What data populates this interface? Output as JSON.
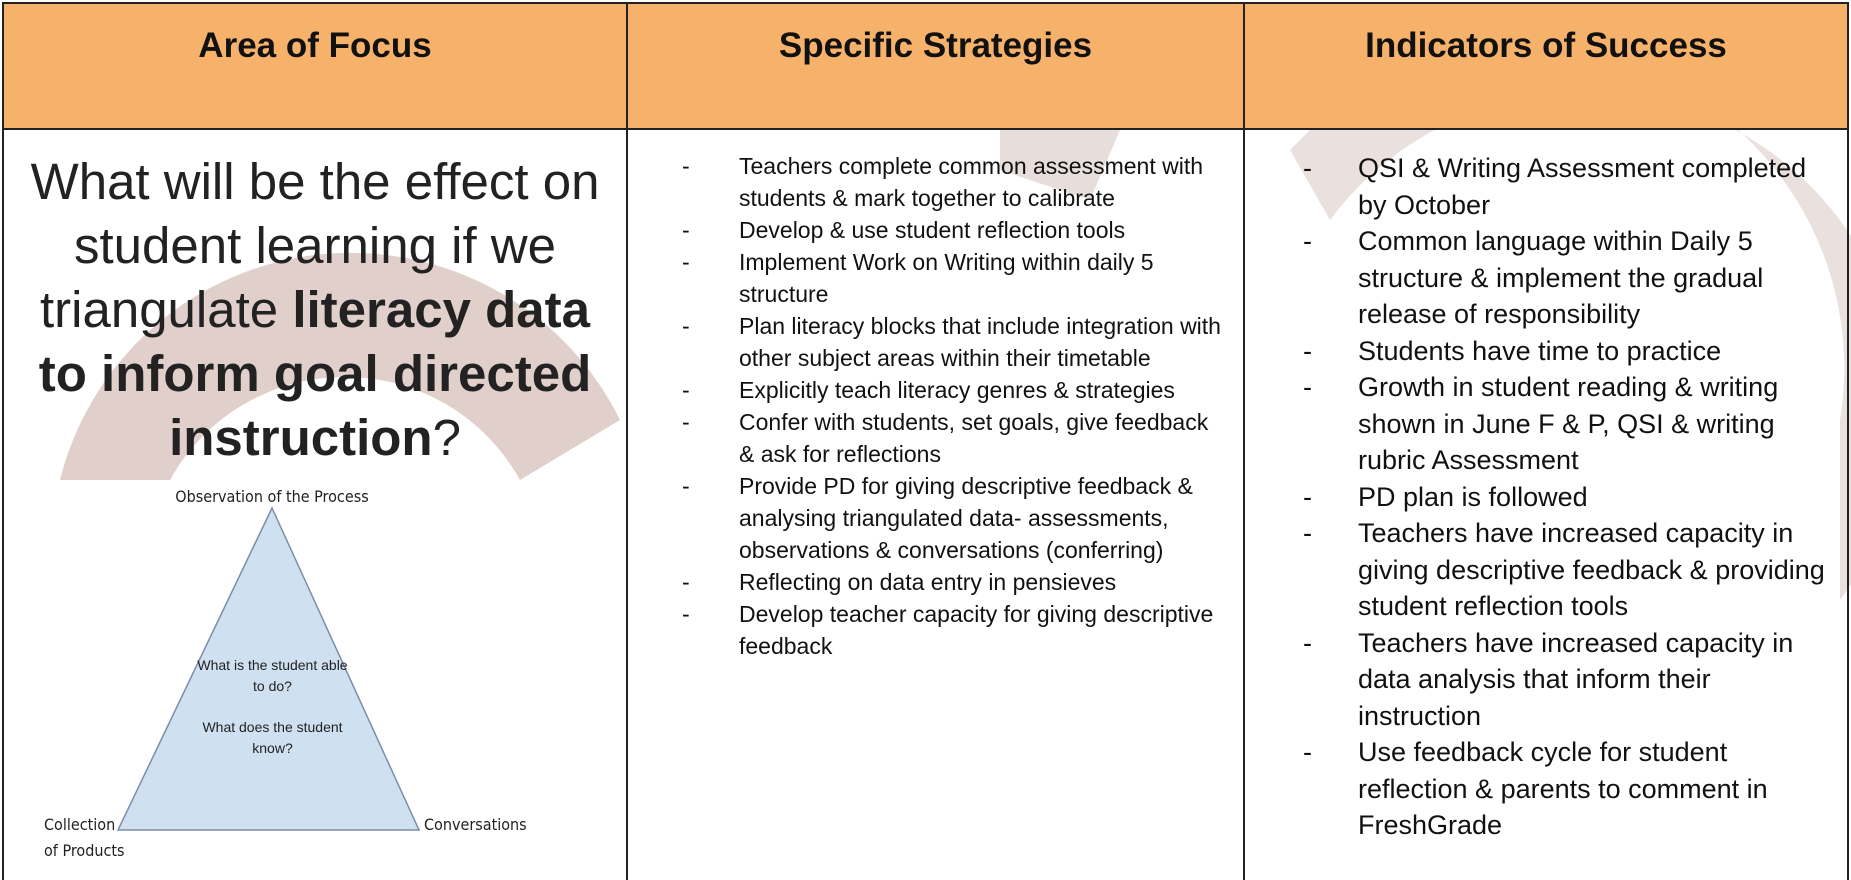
{
  "header": {
    "columns": [
      "Area of  Focus",
      "Specific Strategies",
      "Indicators of Success"
    ]
  },
  "focus": {
    "question": {
      "before": "What will be the effect on student learning if we triangulate ",
      "emphasis": "literacy data to inform goal directed instruction",
      "after": "?"
    },
    "triangle": {
      "top": "Observation of the Process",
      "left": [
        "Collection",
        "of Products"
      ],
      "right": "Conversations",
      "inner": [
        "What is the student able to do?",
        "What does the student know?"
      ]
    }
  },
  "strategies": [
    "Teachers complete common assessment with students & mark together to calibrate",
    "Develop & use student reflection tools",
    "Implement Work on Writing within daily 5 structure",
    "Plan literacy blocks that include integration with other subject areas within their timetable",
    "Explicitly teach literacy genres & strategies",
    "Confer with students, set goals, give feedback & ask for reflections",
    "Provide PD for giving descriptive feedback & analysing triangulated data- assessments, observations & conversations (conferring)",
    "Reflecting on data entry in pensieves",
    "Develop teacher capacity for giving descriptive feedback"
  ],
  "indicators": [
    "QSI & Writing Assessment completed by October",
    "Common language within Daily 5 structure & implement the gradual release of responsibility",
    "Students have time to practice",
    "Growth in student reading & writing shown in June F & P, QSI & writing rubric Assessment",
    "PD plan is followed",
    "Teachers have increased capacity in giving descriptive feedback & providing student reflection tools",
    "Teachers have increased capacity in data analysis that inform their instruction",
    "Use feedback cycle for student reflection & parents to comment in FreshGrade"
  ]
}
